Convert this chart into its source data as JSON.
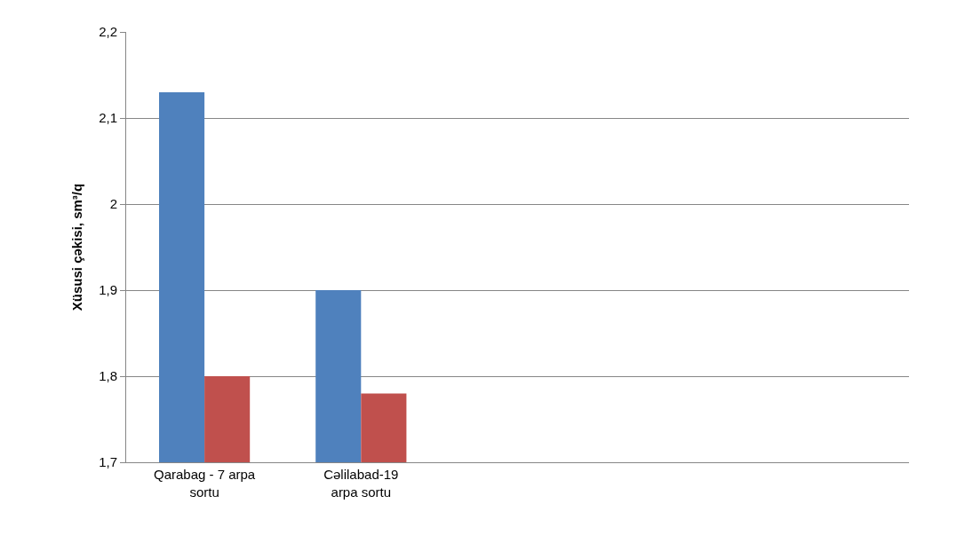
{
  "chart_data": {
    "type": "bar",
    "ylabel": "Xüsusi çəkisi, sm³/q",
    "categories": [
      "Qarabag - 7 arpa sortu",
      "Cəlilabad-19 arpa sortu",
      null,
      null,
      null
    ],
    "series": [
      {
        "color": "#4f81bd",
        "values": [
          2.13,
          1.9,
          null,
          null,
          null
        ]
      },
      {
        "color": "#c0504d",
        "values": [
          1.8,
          1.78,
          null,
          null,
          null
        ]
      }
    ],
    "ylim": [
      1.7,
      2.2
    ],
    "yticks": [
      {
        "value": 1.7,
        "label": "1,7"
      },
      {
        "value": 1.8,
        "label": "1,8"
      },
      {
        "value": 1.9,
        "label": "1,9"
      },
      2,
      {
        "value": 2.1,
        "label": "2,1"
      },
      {
        "value": 2.2,
        "label": "2,2"
      }
    ],
    "grid": "y"
  }
}
